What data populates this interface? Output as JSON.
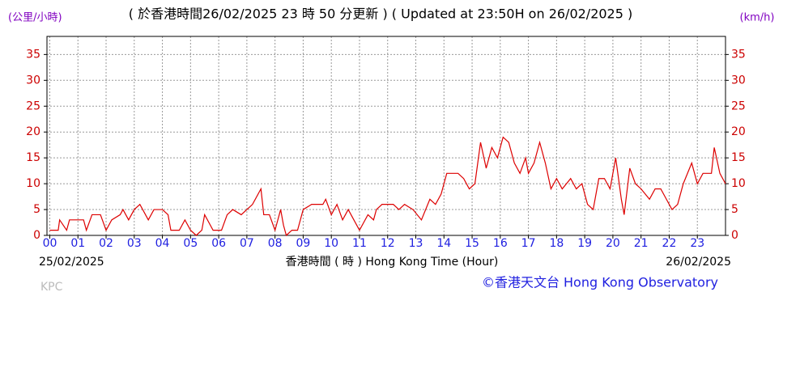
{
  "chart_data": {
    "type": "line",
    "title": "( 於香港時間26/02/2025 23 時 50 分更新 ) ( Updated at 23:50H on 26/02/2025 )",
    "y_label": "(公里/小時)",
    "y2_label": "(km/h)",
    "x_label": "香港時間 ( 時 )  Hong Kong Time (Hour)",
    "start_date": "25/02/2025",
    "end_date": "26/02/2025",
    "credit": "©香港天文台 Hong Kong Observatory",
    "station": "KPC",
    "color": "#dd0000",
    "grid": true,
    "xlim": [
      -0.1,
      24
    ],
    "ylim": [
      0,
      38.5
    ],
    "y2lim": [
      0,
      38.5
    ],
    "xticks": [
      {
        "value": 0,
        "label": "00"
      },
      {
        "value": 1,
        "label": "01"
      },
      {
        "value": 2,
        "label": "02"
      },
      {
        "value": 3,
        "label": "03"
      },
      {
        "value": 4,
        "label": "04"
      },
      {
        "value": 5,
        "label": "05"
      },
      {
        "value": 6,
        "label": "06"
      },
      {
        "value": 7,
        "label": "07"
      },
      {
        "value": 8,
        "label": "08"
      },
      {
        "value": 9,
        "label": "09"
      },
      {
        "value": 10,
        "label": "10"
      },
      {
        "value": 11,
        "label": "11"
      },
      {
        "value": 12,
        "label": "12"
      },
      {
        "value": 13,
        "label": "13"
      },
      {
        "value": 14,
        "label": "14"
      },
      {
        "value": 15,
        "label": "15"
      },
      {
        "value": 16,
        "label": "16"
      },
      {
        "value": 17,
        "label": "17"
      },
      {
        "value": 18,
        "label": "18"
      },
      {
        "value": 19,
        "label": "19"
      },
      {
        "value": 20,
        "label": "20"
      },
      {
        "value": 21,
        "label": "21"
      },
      {
        "value": 22,
        "label": "22"
      },
      {
        "value": 23,
        "label": "23"
      }
    ],
    "yticks": [
      0,
      5,
      10,
      15,
      20,
      25,
      30,
      35
    ],
    "y2ticks": [
      0,
      5,
      10,
      15,
      20,
      25,
      30,
      35
    ],
    "x": [
      0,
      0.3,
      0.35,
      0.6,
      0.7,
      1.0,
      1.2,
      1.3,
      1.5,
      1.8,
      2.0,
      2.2,
      2.5,
      2.6,
      2.8,
      3.0,
      3.2,
      3.5,
      3.7,
      4.0,
      4.2,
      4.3,
      4.6,
      4.8,
      5.0,
      5.2,
      5.4,
      5.5,
      5.8,
      6.1,
      6.3,
      6.5,
      6.8,
      7.0,
      7.2,
      7.5,
      7.6,
      7.8,
      8.0,
      8.2,
      8.3,
      8.4,
      8.6,
      8.8,
      9.0,
      9.3,
      9.7,
      9.8,
      10.0,
      10.2,
      10.4,
      10.6,
      10.8,
      11.0,
      11.3,
      11.5,
      11.6,
      11.8,
      12.2,
      12.4,
      12.6,
      12.9,
      13.2,
      13.5,
      13.7,
      13.9,
      14.1,
      14.5,
      14.7,
      14.9,
      15.1,
      15.3,
      15.5,
      15.7,
      15.9,
      16.1,
      16.3,
      16.5,
      16.7,
      16.9,
      17.0,
      17.2,
      17.4,
      17.6,
      17.8,
      18.0,
      18.2,
      18.5,
      18.7,
      18.9,
      19.1,
      19.3,
      19.5,
      19.7,
      19.9,
      20.1,
      20.3,
      20.4,
      20.6,
      20.8,
      21.0,
      21.3,
      21.5,
      21.7,
      21.9,
      22.1,
      22.3,
      22.5,
      22.8,
      23.0,
      23.2,
      23.5,
      23.6,
      23.8,
      24.0
    ],
    "values": [
      1,
      1,
      3,
      1,
      3,
      3,
      3,
      1,
      4,
      4,
      1,
      3,
      4,
      5,
      3,
      5,
      6,
      3,
      5,
      5,
      4,
      1,
      1,
      3,
      1,
      0,
      1,
      4,
      1,
      1,
      4,
      5,
      4,
      5,
      6,
      9,
      4,
      4,
      1,
      5,
      2,
      0,
      1,
      1,
      5,
      6,
      6,
      7,
      4,
      6,
      3,
      5,
      3,
      1,
      4,
      3,
      5,
      6,
      6,
      5,
      6,
      5,
      3,
      7,
      6,
      8,
      12,
      12,
      11,
      9,
      10,
      18,
      13,
      17,
      15,
      19,
      18,
      14,
      12,
      15,
      12,
      14,
      18,
      14,
      9,
      11,
      9,
      11,
      9,
      10,
      6,
      5,
      11,
      11,
      9,
      15,
      7,
      4,
      13,
      10,
      9,
      7,
      9,
      9,
      7,
      5,
      6,
      10,
      14,
      10,
      12,
      12,
      17,
      12,
      10
    ]
  }
}
